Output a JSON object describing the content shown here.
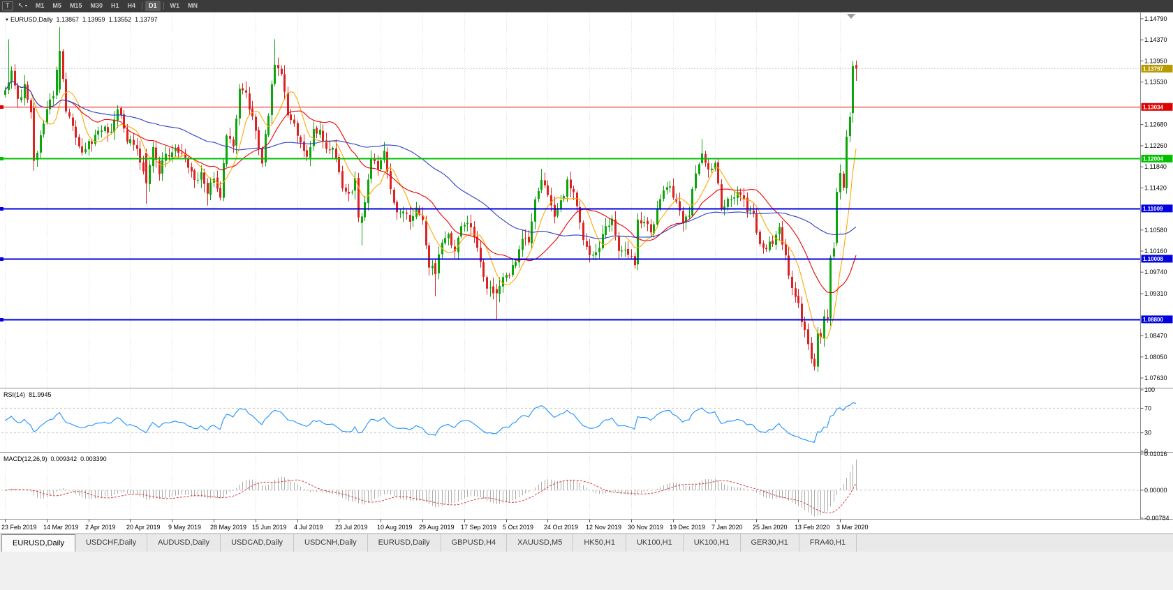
{
  "toolbar": {
    "chart_button": "T",
    "cursor_icon": "↖",
    "caret_icon": "▾",
    "timeframes": [
      "M1",
      "M5",
      "M15",
      "M30",
      "H1",
      "H4",
      "D1",
      "W1",
      "MN"
    ],
    "active_timeframe": "D1"
  },
  "icons": {
    "title_marker": "▼"
  },
  "chart_header": {
    "symbol": "EURUSD,Daily",
    "open": "1.13867",
    "high": "1.13959",
    "low": "1.13552",
    "close": "1.13797"
  },
  "current_price": {
    "value": "1.13797",
    "badge_color": "#B89B00"
  },
  "price_axis_ticks": [
    "1.14790",
    "1.14370",
    "1.13950",
    "1.13530",
    "1.12680",
    "1.12260",
    "1.11840",
    "1.11420",
    "1.10580",
    "1.10160",
    "1.09740",
    "1.09310",
    "1.08470",
    "1.08050",
    "1.07630"
  ],
  "hlines": [
    {
      "price": 1.13034,
      "label": "1.13034",
      "color": "#E00000",
      "width": 1
    },
    {
      "price": 1.12004,
      "label": "1.12004",
      "color": "#00C000",
      "width": 2
    },
    {
      "price": 1.11009,
      "label": "1.11009",
      "color": "#0000E0",
      "width": 2
    },
    {
      "price": 1.10008,
      "label": "1.10008",
      "color": "#0000E0",
      "width": 2
    },
    {
      "price": 1.088,
      "label": "1.08800",
      "color": "#0000E0",
      "width": 2
    }
  ],
  "rsi": {
    "name": "RSI(14)",
    "value": "81.9945",
    "levels": [
      "100",
      "70",
      "30",
      "0"
    ],
    "level_values": [
      100,
      70,
      30,
      0
    ],
    "dashed_levels": [
      70,
      30
    ]
  },
  "macd": {
    "name": "MACD(12,26,9)",
    "value_main": "0.009342",
    "value_signal": "0.003390",
    "levels": [
      "0.01016",
      "0.00000",
      "-0.00784"
    ],
    "level_values": [
      0.01016,
      0,
      -0.00784
    ]
  },
  "date_labels": [
    "23 Feb 2019",
    "14 Mar 2019",
    "2 Apr 2019",
    "20 Apr 2019",
    "9 May 2019",
    "28 May 2019",
    "15 Jun 2019",
    "4 Jul 2019",
    "23 Jul 2019",
    "10 Aug 2019",
    "29 Aug 2019",
    "17 Sep 2019",
    "5 Oct 2019",
    "24 Oct 2019",
    "12 Nov 2019",
    "30 Nov 2019",
    "19 Dec 2019",
    "7 Jan 2020",
    "25 Jan 2020",
    "13 Feb 2020",
    "3 Mar 2020"
  ],
  "tabs": [
    {
      "label": "EURUSD,Daily",
      "active": true
    },
    {
      "label": "USDCHF,Daily",
      "active": false
    },
    {
      "label": "AUDUSD,Daily",
      "active": false
    },
    {
      "label": "USDCAD,Daily",
      "active": false
    },
    {
      "label": "USDCNH,Daily",
      "active": false
    },
    {
      "label": "EURUSD,Daily",
      "active": false
    },
    {
      "label": "GBPUSD,H4",
      "active": false
    },
    {
      "label": "XAUUSD,M5",
      "active": false
    },
    {
      "label": "HK50,H1",
      "active": false
    },
    {
      "label": "UK100,H1",
      "active": false
    },
    {
      "label": "UK100,H1",
      "active": false
    },
    {
      "label": "GER30,H1",
      "active": false
    },
    {
      "label": "FRA40,H1",
      "active": false
    }
  ],
  "colors": {
    "bull": "#0CA50C",
    "bear": "#DD2222",
    "ma_fast": "#FFA800",
    "ma_mid": "#EE0000",
    "ma_slow": "#2A3FC4",
    "rsi_line": "#1E90FF",
    "macd_hist": "#ABABAB",
    "macd_signal": "#D83C3C",
    "grid": "#DCDCDC",
    "frame": "#8E8E8E",
    "bid_line": "#C9C9C9"
  },
  "chart_data": {
    "type": "candlestick",
    "symbol": "EURUSD",
    "timeframe": "Daily",
    "title": "EURUSD,Daily 1.13867 1.13959 1.13552 1.13797",
    "ylim": [
      1.0745,
      1.149
    ],
    "bars": 266,
    "bars_per_label": 13,
    "anchors": [
      [
        0,
        1.133
      ],
      [
        2,
        1.1372
      ],
      [
        4,
        1.1315
      ],
      [
        6,
        1.1345
      ],
      [
        8,
        1.13
      ],
      [
        9,
        1.1196
      ],
      [
        11,
        1.1243
      ],
      [
        13,
        1.1302
      ],
      [
        15,
        1.1332
      ],
      [
        17,
        1.1415
      ],
      [
        19,
        1.1302
      ],
      [
        22,
        1.1246
      ],
      [
        24,
        1.1218
      ],
      [
        27,
        1.1236
      ],
      [
        30,
        1.1262
      ],
      [
        33,
        1.1254
      ],
      [
        35,
        1.1302
      ],
      [
        38,
        1.1237
      ],
      [
        41,
        1.1221
      ],
      [
        44,
        1.1151
      ],
      [
        46,
        1.1216
      ],
      [
        48,
        1.1176
      ],
      [
        50,
        1.1202
      ],
      [
        53,
        1.1213
      ],
      [
        56,
        1.1206
      ],
      [
        59,
        1.1158
      ],
      [
        61,
        1.1168
      ],
      [
        63,
        1.1131
      ],
      [
        65,
        1.1163
      ],
      [
        67,
        1.113
      ],
      [
        69,
        1.1241
      ],
      [
        71,
        1.1223
      ],
      [
        73,
        1.1333
      ],
      [
        75,
        1.1328
      ],
      [
        77,
        1.1277
      ],
      [
        80,
        1.1194
      ],
      [
        82,
        1.1293
      ],
      [
        84,
        1.139
      ],
      [
        86,
        1.1368
      ],
      [
        88,
        1.1286
      ],
      [
        90,
        1.1278
      ],
      [
        92,
        1.1227
      ],
      [
        94,
        1.1208
      ],
      [
        96,
        1.1252
      ],
      [
        98,
        1.1258
      ],
      [
        100,
        1.1226
      ],
      [
        103,
        1.1208
      ],
      [
        105,
        1.114
      ],
      [
        107,
        1.1128
      ],
      [
        109,
        1.1155
      ],
      [
        110,
        1.1076
      ],
      [
        111,
        1.1085
      ],
      [
        112,
        1.1108
      ],
      [
        114,
        1.1201
      ],
      [
        116,
        1.1181
      ],
      [
        118,
        1.1214
      ],
      [
        120,
        1.1139
      ],
      [
        122,
        1.109
      ],
      [
        124,
        1.11
      ],
      [
        126,
        1.1081
      ],
      [
        128,
        1.1101
      ],
      [
        130,
        1.1078
      ],
      [
        132,
        1.0989
      ],
      [
        134,
        1.097
      ],
      [
        136,
        1.1035
      ],
      [
        138,
        1.1047
      ],
      [
        140,
        1.1011
      ],
      [
        142,
        1.1073
      ],
      [
        144,
        1.1072
      ],
      [
        146,
        1.1043
      ],
      [
        148,
        1.0993
      ],
      [
        150,
        1.0944
      ],
      [
        153,
        1.0932
      ],
      [
        155,
        1.0965
      ],
      [
        157,
        1.0973
      ],
      [
        159,
        1.0989
      ],
      [
        161,
        1.104
      ],
      [
        163,
        1.1033
      ],
      [
        165,
        1.1124
      ],
      [
        167,
        1.115
      ],
      [
        169,
        1.1132
      ],
      [
        171,
        1.108
      ],
      [
        173,
        1.1114
      ],
      [
        175,
        1.1152
      ],
      [
        177,
        1.1128
      ],
      [
        179,
        1.1067
      ],
      [
        181,
        1.1018
      ],
      [
        183,
        1.101
      ],
      [
        185,
        1.1022
      ],
      [
        187,
        1.1072
      ],
      [
        189,
        1.1074
      ],
      [
        191,
        1.1021
      ],
      [
        193,
        1.1018
      ],
      [
        195,
        1.1009
      ],
      [
        196,
        1.0988
      ],
      [
        197,
        1.1078
      ],
      [
        199,
        1.1077
      ],
      [
        201,
        1.106
      ],
      [
        203,
        1.1093
      ],
      [
        205,
        1.1131
      ],
      [
        207,
        1.1145
      ],
      [
        209,
        1.1114
      ],
      [
        211,
        1.1078
      ],
      [
        213,
        1.1089
      ],
      [
        215,
        1.1177
      ],
      [
        217,
        1.1212
      ],
      [
        219,
        1.1172
      ],
      [
        221,
        1.1196
      ],
      [
        223,
        1.1103
      ],
      [
        225,
        1.1122
      ],
      [
        227,
        1.1128
      ],
      [
        229,
        1.1135
      ],
      [
        231,
        1.1095
      ],
      [
        233,
        1.1093
      ],
      [
        235,
        1.1025
      ],
      [
        237,
        1.1022
      ],
      [
        239,
        1.1032
      ],
      [
        241,
        1.106
      ],
      [
        243,
        1.1
      ],
      [
        245,
        1.0946
      ],
      [
        247,
        1.0917
      ],
      [
        248,
        1.0873
      ],
      [
        250,
        1.083
      ],
      [
        252,
        1.0786
      ],
      [
        253,
        1.0846
      ],
      [
        254,
        1.0851
      ],
      [
        255,
        1.0881
      ],
      [
        256,
        1.088
      ],
      [
        257,
        1.0997
      ],
      [
        258,
        1.1027
      ],
      [
        259,
        1.1134
      ],
      [
        260,
        1.1173
      ],
      [
        261,
        1.1135
      ],
      [
        262,
        1.1238
      ],
      [
        263,
        1.1284
      ],
      [
        264,
        1.1385
      ],
      [
        265,
        1.13797
      ]
    ],
    "explicit_bars": {
      "9": [
        1.1301,
        1.1312,
        1.1176,
        1.1196
      ],
      "17": [
        1.1338,
        1.1462,
        1.1331,
        1.1415
      ],
      "44": [
        1.1212,
        1.122,
        1.111,
        1.1151
      ],
      "111": [
        1.1072,
        1.1092,
        1.1027,
        1.1085
      ],
      "134": [
        1.0992,
        1.0999,
        1.0926,
        1.097
      ],
      "153": [
        1.094,
        1.0951,
        1.0879,
        1.0932
      ],
      "196": [
        1.1006,
        1.1013,
        1.0981,
        1.0988
      ],
      "252": [
        1.0801,
        1.0812,
        1.0778,
        1.0786
      ],
      "259": [
        1.1032,
        1.1142,
        1.1026,
        1.1134
      ],
      "264": [
        1.1291,
        1.1395,
        1.1272,
        1.1385
      ],
      "265": [
        1.13867,
        1.13959,
        1.13552,
        1.13797
      ]
    },
    "spikes": {
      "1": {
        "h": 1.1438
      },
      "63": {
        "l": 1.1107
      },
      "84": {
        "h": 1.1438
      },
      "167": {
        "h": 1.118
      },
      "217": {
        "h": 1.1239
      }
    },
    "ma": [
      {
        "period": 8,
        "color": "#FFA800"
      },
      {
        "period": 21,
        "color": "#EE0000"
      },
      {
        "period": 55,
        "color": "#2A3FC4"
      }
    ]
  }
}
